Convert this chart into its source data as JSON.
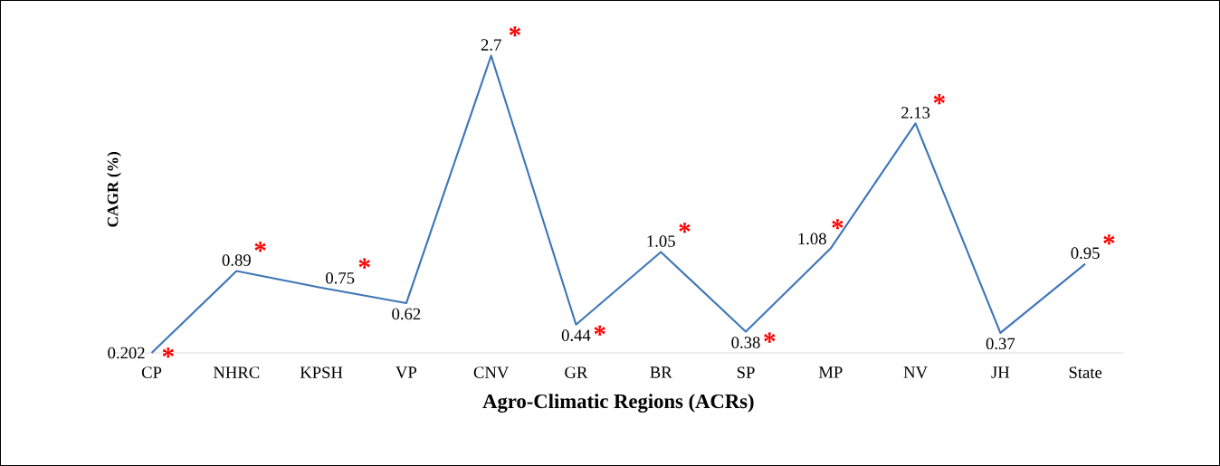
{
  "chart_data": {
    "type": "line",
    "xlabel": "Agro-Climatic Regions (ACRs)",
    "ylabel": "CAGR (%)",
    "categories": [
      "CP",
      "NHRC",
      "KPSH",
      "VP",
      "CNV",
      "GR",
      "BR",
      "SP",
      "MP",
      "NV",
      "JH",
      "State"
    ],
    "values": [
      0.202,
      0.89,
      0.75,
      0.62,
      2.7,
      0.44,
      1.05,
      0.38,
      1.08,
      2.13,
      0.37,
      0.95
    ],
    "color": "#3f76b8",
    "data_labels": true,
    "marker": "none",
    "line_style": "solid",
    "grid": false,
    "legend": false,
    "annotations": [
      {
        "text": "*",
        "x": "CP",
        "y": 0.202
      },
      {
        "text": "*",
        "x": "NHRC",
        "y": 0.89
      },
      {
        "text": "*",
        "x": "KPSH",
        "y": 0.75
      },
      {
        "text": "*",
        "x": "CNV",
        "y": 2.7
      },
      {
        "text": "*",
        "x": "GR",
        "y": 0.44
      },
      {
        "text": "*",
        "x": "BR",
        "y": 1.05
      },
      {
        "text": "*",
        "x": "SP",
        "y": 0.38
      },
      {
        "text": "*",
        "x": "MP",
        "y": 1.08
      },
      {
        "text": "*",
        "x": "NV",
        "y": 2.13
      },
      {
        "text": "*",
        "x": "State",
        "y": 0.95
      }
    ]
  }
}
